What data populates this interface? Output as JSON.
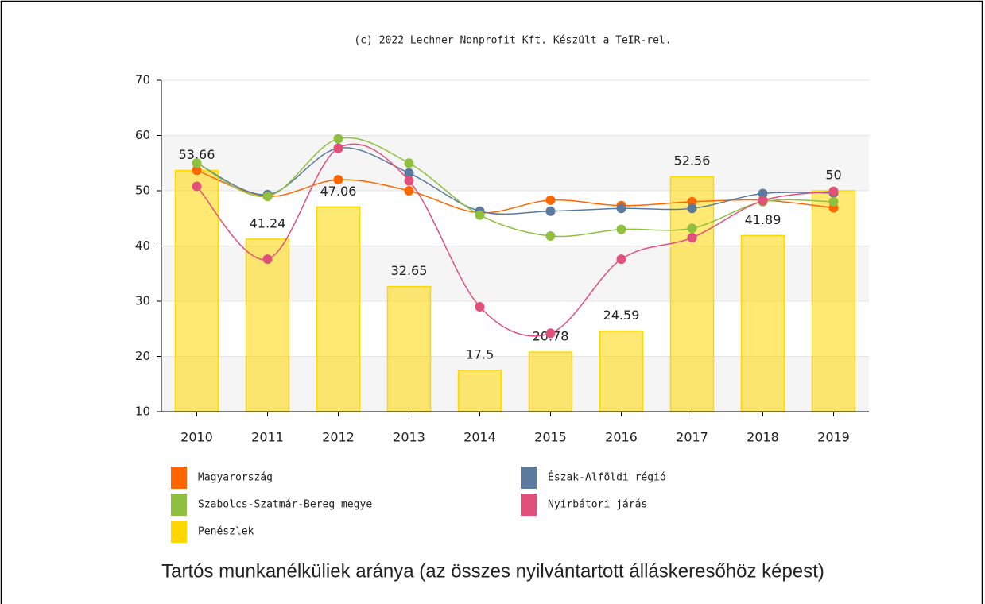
{
  "chart_data": {
    "type": "combo",
    "title": "Tartós munkanélküliek aránya (az összes nyilvántartott álláskeresőhöz képest)",
    "credit": "(c) 2022 Lechner Nonprofit Kft. Készült a TeIR-rel.",
    "categories": [
      "2010",
      "2011",
      "2012",
      "2013",
      "2014",
      "2015",
      "2016",
      "2017",
      "2018",
      "2019"
    ],
    "ylim": [
      10,
      70
    ],
    "yticks": [
      10,
      20,
      30,
      40,
      50,
      60,
      70
    ],
    "series": [
      {
        "name": "Magyarország",
        "color": "#ff6600",
        "type": "line",
        "values": [
          53.7,
          49,
          52,
          50,
          46,
          48.3,
          47.3,
          48,
          48.3,
          46.9
        ]
      },
      {
        "name": "Észak-Alföldi régió",
        "color": "#5b7a9e",
        "type": "line",
        "values": [
          55,
          49.3,
          57.7,
          53.2,
          46.3,
          46.3,
          46.8,
          46.8,
          49.5,
          49.6
        ]
      },
      {
        "name": "Szabolcs-Szatmár-Bereg megye",
        "color": "#8fc040",
        "type": "line",
        "values": [
          55,
          49,
          59.4,
          55,
          45.6,
          41.8,
          43,
          43.2,
          48,
          48
        ]
      },
      {
        "name": "Nyírbátori járás",
        "color": "#e0507a",
        "type": "line",
        "values": [
          50.8,
          37.6,
          57.7,
          51.8,
          29,
          24.2,
          37.6,
          41.5,
          48.2,
          49.9
        ]
      },
      {
        "name": "Penészlek",
        "color": "#ffd700",
        "type": "bar",
        "values": [
          53.66,
          41.24,
          47.06,
          32.65,
          17.5,
          20.78,
          24.59,
          52.56,
          41.89,
          50
        ]
      }
    ]
  }
}
